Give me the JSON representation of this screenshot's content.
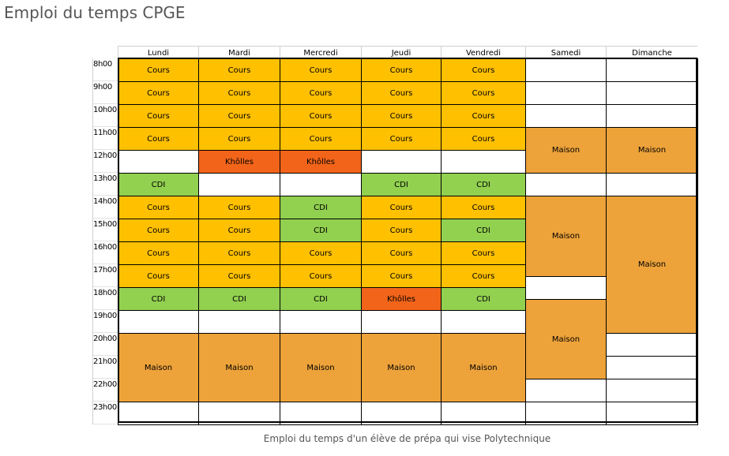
{
  "page": {
    "title": "Emploi du temps CPGE",
    "caption": "Emploi du temps d'un élève de prépa qui vise Polytechnique"
  },
  "colors": {
    "Cours": "#FFC000",
    "Khôlles": "#F26419",
    "CDI": "#92D050",
    "Maison": "#EDA23A",
    "empty": "#FFFFFF"
  },
  "days": [
    "Lundi",
    "Mardi",
    "Mercredi",
    "Jeudi",
    "Vendredi",
    "Samedi",
    "Dimanche"
  ],
  "hours": [
    "8h00",
    "9h00",
    "10h00",
    "11h00",
    "12h00",
    "13h00",
    "14h00",
    "15h00",
    "16h00",
    "17h00",
    "18h00",
    "19h00",
    "20h00",
    "21h00",
    "22h00",
    "23h00"
  ],
  "schedule": [
    {
      "day": "Lundi",
      "blocks": [
        {
          "start": "8h00",
          "end": "9h00",
          "label": "Cours"
        },
        {
          "start": "9h00",
          "end": "10h00",
          "label": "Cours"
        },
        {
          "start": "10h00",
          "end": "11h00",
          "label": "Cours"
        },
        {
          "start": "11h00",
          "end": "12h00",
          "label": "Cours"
        },
        {
          "start": "12h00",
          "end": "13h00",
          "label": ""
        },
        {
          "start": "13h00",
          "end": "14h00",
          "label": "CDI"
        },
        {
          "start": "14h00",
          "end": "15h00",
          "label": "Cours"
        },
        {
          "start": "15h00",
          "end": "16h00",
          "label": "Cours"
        },
        {
          "start": "16h00",
          "end": "17h00",
          "label": "Cours"
        },
        {
          "start": "17h00",
          "end": "18h00",
          "label": "Cours"
        },
        {
          "start": "18h00",
          "end": "19h00",
          "label": "CDI"
        },
        {
          "start": "19h00",
          "end": "20h00",
          "label": ""
        },
        {
          "start": "20h00",
          "end": "23h00",
          "label": "Maison"
        },
        {
          "start": "23h00",
          "end": "24h00",
          "label": ""
        }
      ]
    },
    {
      "day": "Mardi",
      "blocks": [
        {
          "start": "8h00",
          "end": "9h00",
          "label": "Cours"
        },
        {
          "start": "9h00",
          "end": "10h00",
          "label": "Cours"
        },
        {
          "start": "10h00",
          "end": "11h00",
          "label": "Cours"
        },
        {
          "start": "11h00",
          "end": "12h00",
          "label": "Cours"
        },
        {
          "start": "12h00",
          "end": "13h00",
          "label": "Khôlles"
        },
        {
          "start": "13h00",
          "end": "14h00",
          "label": ""
        },
        {
          "start": "14h00",
          "end": "15h00",
          "label": "Cours"
        },
        {
          "start": "15h00",
          "end": "16h00",
          "label": "Cours"
        },
        {
          "start": "16h00",
          "end": "17h00",
          "label": "Cours"
        },
        {
          "start": "17h00",
          "end": "18h00",
          "label": "Cours"
        },
        {
          "start": "18h00",
          "end": "19h00",
          "label": "CDI"
        },
        {
          "start": "19h00",
          "end": "20h00",
          "label": ""
        },
        {
          "start": "20h00",
          "end": "23h00",
          "label": "Maison"
        },
        {
          "start": "23h00",
          "end": "24h00",
          "label": ""
        }
      ]
    },
    {
      "day": "Mercredi",
      "blocks": [
        {
          "start": "8h00",
          "end": "9h00",
          "label": "Cours"
        },
        {
          "start": "9h00",
          "end": "10h00",
          "label": "Cours"
        },
        {
          "start": "10h00",
          "end": "11h00",
          "label": "Cours"
        },
        {
          "start": "11h00",
          "end": "12h00",
          "label": "Cours"
        },
        {
          "start": "12h00",
          "end": "13h00",
          "label": "Khôlles"
        },
        {
          "start": "13h00",
          "end": "14h00",
          "label": ""
        },
        {
          "start": "14h00",
          "end": "15h00",
          "label": "CDI"
        },
        {
          "start": "15h00",
          "end": "16h00",
          "label": "CDI"
        },
        {
          "start": "16h00",
          "end": "17h00",
          "label": "Cours"
        },
        {
          "start": "17h00",
          "end": "18h00",
          "label": "Cours"
        },
        {
          "start": "18h00",
          "end": "19h00",
          "label": "CDI"
        },
        {
          "start": "19h00",
          "end": "20h00",
          "label": ""
        },
        {
          "start": "20h00",
          "end": "23h00",
          "label": "Maison"
        },
        {
          "start": "23h00",
          "end": "24h00",
          "label": ""
        }
      ]
    },
    {
      "day": "Jeudi",
      "blocks": [
        {
          "start": "8h00",
          "end": "9h00",
          "label": "Cours"
        },
        {
          "start": "9h00",
          "end": "10h00",
          "label": "Cours"
        },
        {
          "start": "10h00",
          "end": "11h00",
          "label": "Cours"
        },
        {
          "start": "11h00",
          "end": "12h00",
          "label": "Cours"
        },
        {
          "start": "12h00",
          "end": "13h00",
          "label": ""
        },
        {
          "start": "13h00",
          "end": "14h00",
          "label": "CDI"
        },
        {
          "start": "14h00",
          "end": "15h00",
          "label": "Cours"
        },
        {
          "start": "15h00",
          "end": "16h00",
          "label": "Cours"
        },
        {
          "start": "16h00",
          "end": "17h00",
          "label": "Cours"
        },
        {
          "start": "17h00",
          "end": "18h00",
          "label": "Cours"
        },
        {
          "start": "18h00",
          "end": "19h00",
          "label": "Khôlles"
        },
        {
          "start": "19h00",
          "end": "20h00",
          "label": ""
        },
        {
          "start": "20h00",
          "end": "23h00",
          "label": "Maison"
        },
        {
          "start": "23h00",
          "end": "24h00",
          "label": ""
        }
      ]
    },
    {
      "day": "Vendredi",
      "blocks": [
        {
          "start": "8h00",
          "end": "9h00",
          "label": "Cours"
        },
        {
          "start": "9h00",
          "end": "10h00",
          "label": "Cours"
        },
        {
          "start": "10h00",
          "end": "11h00",
          "label": "Cours"
        },
        {
          "start": "11h00",
          "end": "12h00",
          "label": "Cours"
        },
        {
          "start": "12h00",
          "end": "13h00",
          "label": ""
        },
        {
          "start": "13h00",
          "end": "14h00",
          "label": "CDI"
        },
        {
          "start": "14h00",
          "end": "15h00",
          "label": "Cours"
        },
        {
          "start": "15h00",
          "end": "16h00",
          "label": "CDI"
        },
        {
          "start": "16h00",
          "end": "17h00",
          "label": "Cours"
        },
        {
          "start": "17h00",
          "end": "18h00",
          "label": "Cours"
        },
        {
          "start": "18h00",
          "end": "19h00",
          "label": "CDI"
        },
        {
          "start": "19h00",
          "end": "20h00",
          "label": ""
        },
        {
          "start": "20h00",
          "end": "23h00",
          "label": "Maison"
        },
        {
          "start": "23h00",
          "end": "24h00",
          "label": ""
        }
      ]
    },
    {
      "day": "Samedi",
      "blocks": [
        {
          "start": "8h00",
          "end": "9h00",
          "label": ""
        },
        {
          "start": "9h00",
          "end": "10h00",
          "label": ""
        },
        {
          "start": "10h00",
          "end": "11h00",
          "label": ""
        },
        {
          "start": "11h00",
          "end": "13h00",
          "label": "Maison"
        },
        {
          "start": "13h00",
          "end": "14h00",
          "label": ""
        },
        {
          "start": "14h00",
          "end": "17h30",
          "label": "Maison"
        },
        {
          "start": "17h30",
          "end": "18h30",
          "label": ""
        },
        {
          "start": "18h30",
          "end": "22h00",
          "label": "Maison"
        },
        {
          "start": "22h00",
          "end": "23h00",
          "label": ""
        },
        {
          "start": "23h00",
          "end": "24h00",
          "label": ""
        }
      ]
    },
    {
      "day": "Dimanche",
      "blocks": [
        {
          "start": "8h00",
          "end": "9h00",
          "label": ""
        },
        {
          "start": "9h00",
          "end": "10h00",
          "label": ""
        },
        {
          "start": "10h00",
          "end": "11h00",
          "label": ""
        },
        {
          "start": "11h00",
          "end": "13h00",
          "label": "Maison"
        },
        {
          "start": "13h00",
          "end": "14h00",
          "label": ""
        },
        {
          "start": "14h00",
          "end": "20h00",
          "label": "Maison"
        },
        {
          "start": "20h00",
          "end": "21h00",
          "label": ""
        },
        {
          "start": "21h00",
          "end": "22h00",
          "label": ""
        },
        {
          "start": "22h00",
          "end": "23h00",
          "label": ""
        },
        {
          "start": "23h00",
          "end": "24h00",
          "label": ""
        }
      ]
    }
  ]
}
